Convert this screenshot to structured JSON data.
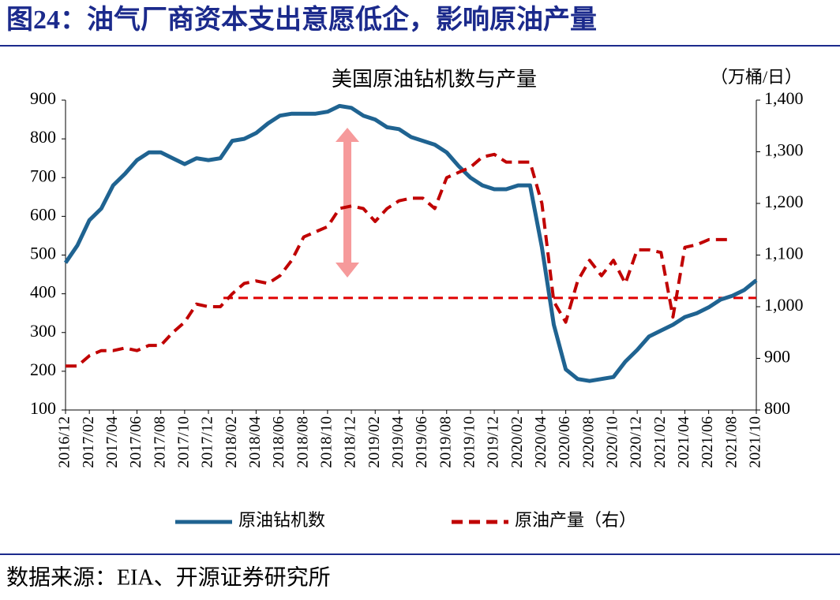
{
  "header": "图24：油气厂商资本支出意愿低企，影响原油产量",
  "source": "数据来源：EIA、开源证券研究所",
  "chart_data": {
    "type": "line",
    "title": "美国原油钻机数与产量",
    "y2_label": "（万桶/日）",
    "categories": [
      "2016/12",
      null,
      "2017/02",
      null,
      "2017/04",
      null,
      "2017/06",
      null,
      "2017/08",
      null,
      "2017/10",
      null,
      "2017/12",
      null,
      "2018/02",
      null,
      "2018/04",
      null,
      "2018/06",
      null,
      "2018/08",
      null,
      "2018/10",
      null,
      "2018/12",
      null,
      "2019/02",
      null,
      "2019/04",
      null,
      "2019/06",
      null,
      "2019/08",
      null,
      "2019/10",
      null,
      "2019/12",
      null,
      "2020/02",
      null,
      "2020/04",
      null,
      "2020/06",
      null,
      "2020/08",
      null,
      "2020/10",
      null,
      "2020/12",
      null,
      "2021/02",
      null,
      "2021/04",
      null,
      "2021/06",
      null,
      "2021/08",
      null,
      "2021/10"
    ],
    "series": [
      {
        "name": "原油钻机数",
        "color": "#1f6391",
        "axis": "y",
        "dashed": false,
        "values": [
          480,
          525,
          590,
          620,
          680,
          710,
          745,
          765,
          765,
          750,
          735,
          750,
          745,
          750,
          795,
          800,
          815,
          840,
          860,
          865,
          865,
          865,
          870,
          885,
          880,
          860,
          850,
          830,
          825,
          805,
          795,
          785,
          765,
          730,
          700,
          680,
          670,
          670,
          680,
          680,
          520,
          320,
          205,
          180,
          175,
          180,
          185,
          225,
          255,
          290,
          305,
          320,
          340,
          350,
          365,
          385,
          395,
          410,
          435
        ]
      },
      {
        "name": "原油产量（右）",
        "color": "#c00000",
        "axis": "y2",
        "dashed": true,
        "values": [
          885,
          885,
          905,
          915,
          915,
          920,
          915,
          925,
          925,
          950,
          970,
          1005,
          1000,
          1000,
          1025,
          1045,
          1050,
          1045,
          1060,
          1090,
          1135,
          1145,
          1155,
          1190,
          1195,
          1190,
          1165,
          1190,
          1205,
          1210,
          1210,
          1190,
          1250,
          1260,
          1270,
          1290,
          1295,
          1280,
          1280,
          1280,
          1200,
          1010,
          970,
          1050,
          1090,
          1060,
          1090,
          1045,
          1110,
          1110,
          1105,
          980,
          1115,
          1120,
          1130,
          1130,
          1130,
          null,
          null
        ]
      }
    ],
    "reference_line": {
      "value": 1017,
      "axis": "y2",
      "color": "#e00000"
    },
    "ylim": [
      100,
      900
    ],
    "yticks": [
      100,
      200,
      300,
      400,
      500,
      600,
      700,
      800,
      900
    ],
    "y2lim": [
      800,
      1400
    ],
    "y2ticks": [
      800,
      900,
      {
        "value": 1000,
        "label": "1,000"
      },
      {
        "value": 1100,
        "label": "1,100"
      },
      {
        "value": 1200,
        "label": "1,200"
      },
      {
        "value": 1300,
        "label": "1,300"
      },
      {
        "value": 1400,
        "label": "1,400"
      }
    ]
  }
}
